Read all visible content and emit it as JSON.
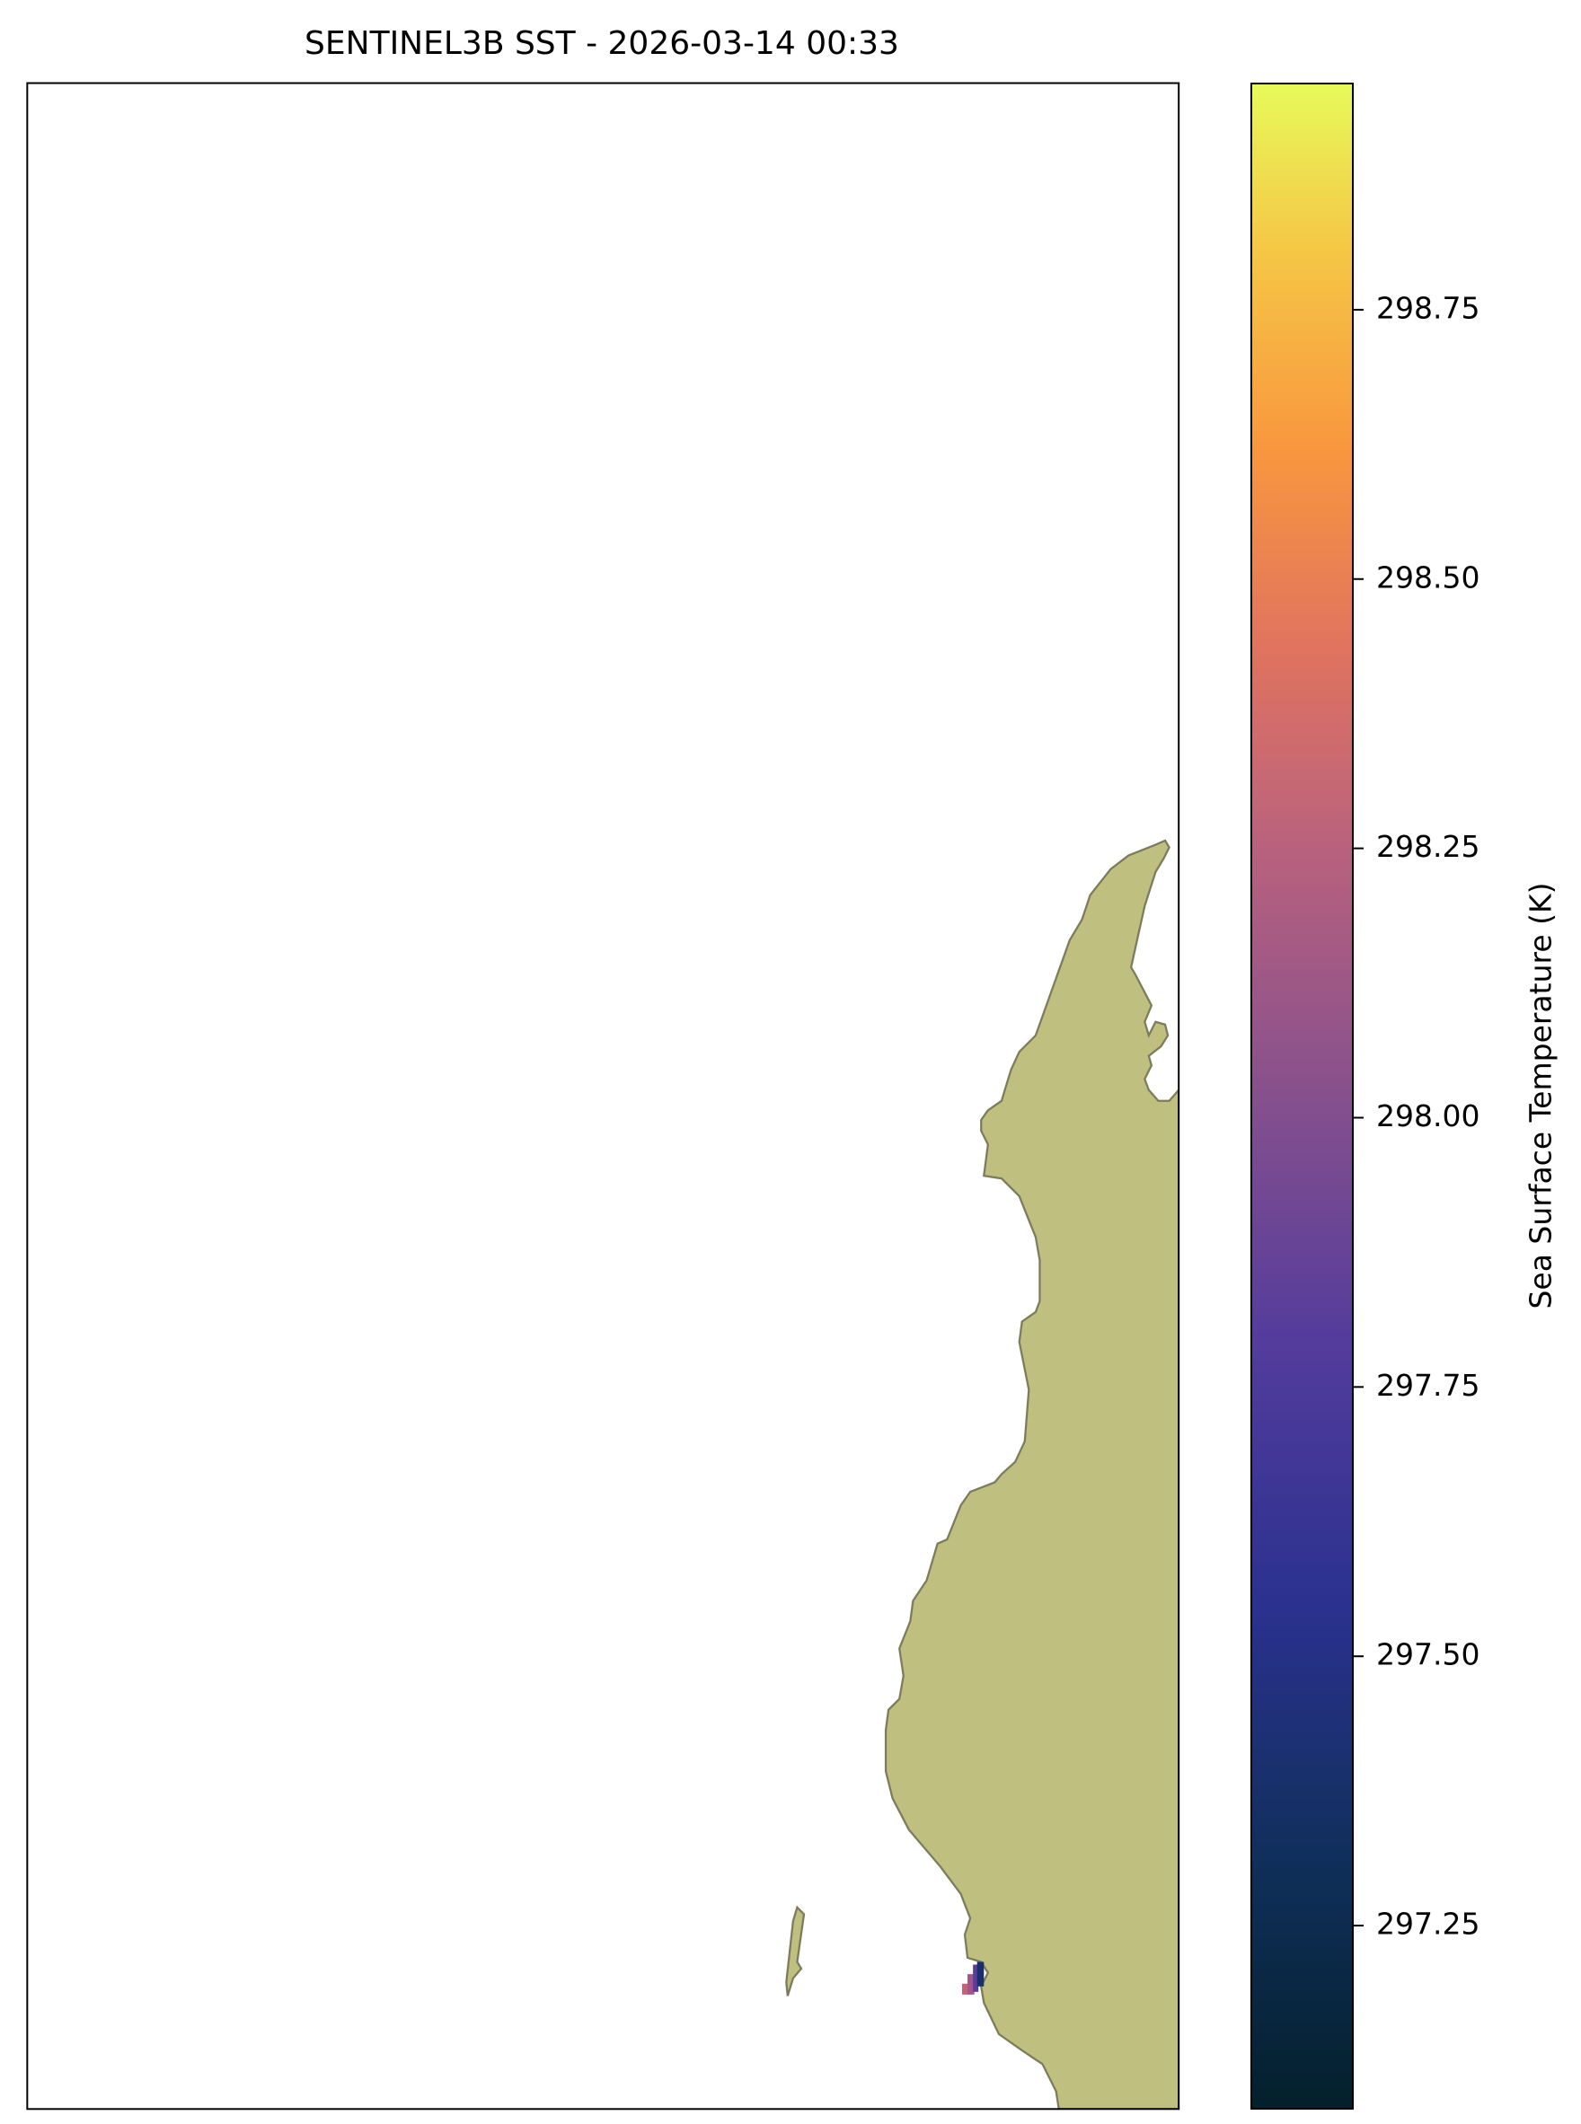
{
  "chart_data": {
    "type": "map",
    "title": "SENTINEL3B SST - 2026-03-14 00:33",
    "colorbar_label": "Sea Surface Temperature (K)",
    "colorbar_lim": [
      297.08,
      298.96
    ],
    "colorbar_ticks": [
      297.25,
      {
        "value": 297.5,
        "label": "297.50"
      },
      297.75,
      {
        "value": 298,
        "label": "298.00"
      },
      298.25,
      {
        "value": 298.5,
        "label": "298.50"
      },
      298.75
    ],
    "land_color": "#bfc080"
  }
}
